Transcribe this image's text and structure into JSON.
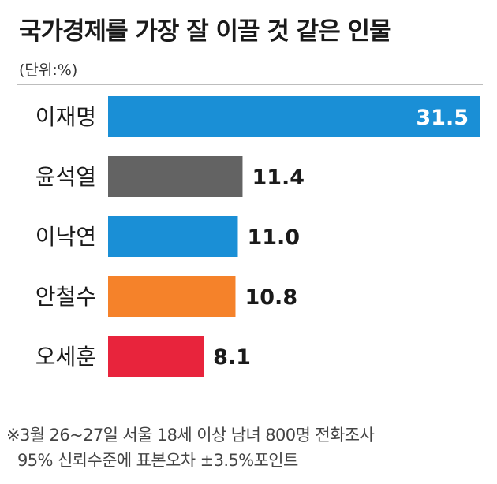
{
  "title": "국가경제를 가장 잘 이끌 것 같은 인물",
  "unit": "(단위:%)",
  "notes": [
    "※3월 26~27일 서울 18세 이상 남녀 800명 전화조사",
    "95% 신뢰수준에 표본오차 ±3.5%포인트"
  ],
  "chart_data": {
    "type": "bar",
    "orientation": "horizontal",
    "categories": [
      "이재명",
      "윤석열",
      "이낙연",
      "안철수",
      "오세훈"
    ],
    "values": [
      31.5,
      11.4,
      11.0,
      10.8,
      8.1
    ],
    "value_labels": [
      "31.5",
      "11.4",
      "11.0",
      "10.8",
      "8.1"
    ],
    "colors": [
      "#1a8fd6",
      "#636363",
      "#1a8fd6",
      "#f5822a",
      "#e8243c"
    ],
    "grid": false,
    "legend": "none"
  }
}
